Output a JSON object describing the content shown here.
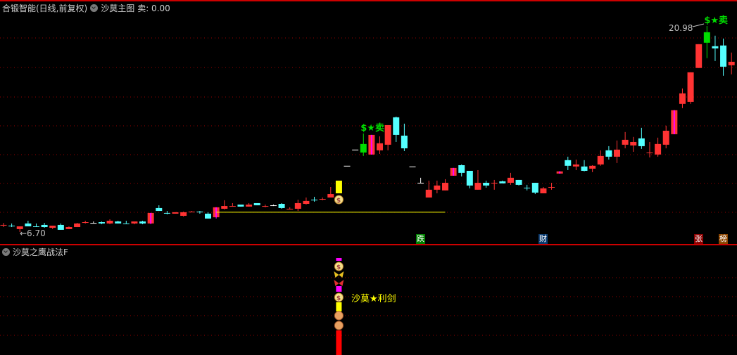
{
  "header": {
    "stock": "合锻智能(日线,前复权)",
    "indicator": "沙莫主图",
    "sell_label": "卖: 0.00"
  },
  "sub_panel": {
    "title": "沙莫之鹰战法F",
    "signal_text": "沙莫★利剑"
  },
  "tags": [
    {
      "text": "跌",
      "color": "#008000"
    },
    {
      "text": "财",
      "color": "#0a3a6e"
    },
    {
      "text": "张",
      "color": "#8b0000"
    },
    {
      "text": "榜",
      "color": "#8b4500"
    }
  ],
  "colors": {
    "up": "#ff3333",
    "down": "#54ffff",
    "doji": "#ffffff",
    "signal_green": "#00dd00",
    "limit_up_wick": "#ff00ff",
    "support_line": "#ffff00",
    "grid": "#990000",
    "divider": "#cc0000"
  },
  "chart_data": {
    "type": "candlestick",
    "price_range": [
      6.7,
      20.98
    ],
    "grid": true,
    "annotations": {
      "low_label": "6.70",
      "high_label": "20.98",
      "sell_signal_text": "$★卖",
      "sell_signal_candles": [
        44,
        86
      ],
      "moneybag_candle": 41,
      "support_level": 8.07,
      "support_from_candle": 26,
      "support_to_candle": 54
    },
    "candles": [
      [
        7.19,
        7.33,
        7.04,
        7.19
      ],
      [
        7.14,
        7.29,
        7.04,
        7.14
      ],
      [
        6.9,
        7.09,
        6.7,
        7.09
      ],
      [
        7.29,
        7.48,
        7.09,
        7.09
      ],
      [
        7.09,
        7.29,
        7.09,
        7.09
      ],
      [
        7.19,
        7.33,
        6.99,
        7.04
      ],
      [
        6.99,
        7.14,
        6.9,
        7.14
      ],
      [
        7.19,
        7.29,
        6.85,
        6.85
      ],
      [
        6.9,
        7.09,
        6.9,
        7.04
      ],
      [
        7.04,
        7.33,
        7.04,
        7.29
      ],
      [
        7.38,
        7.48,
        7.29,
        7.38
      ],
      [
        7.33,
        7.43,
        7.29,
        7.33
      ],
      [
        7.38,
        7.43,
        7.24,
        7.29
      ],
      [
        7.29,
        7.58,
        7.24,
        7.48
      ],
      [
        7.43,
        7.48,
        7.29,
        7.29
      ],
      [
        7.29,
        7.48,
        7.29,
        7.29
      ],
      [
        7.29,
        7.43,
        7.24,
        7.43
      ],
      [
        7.43,
        7.48,
        7.24,
        7.29
      ],
      [
        7.29,
        8.02,
        7.24,
        8.02
      ],
      [
        8.36,
        8.55,
        8.16,
        8.16
      ],
      [
        8.02,
        8.16,
        7.92,
        8.02
      ],
      [
        7.97,
        8.07,
        7.97,
        8.07
      ],
      [
        7.82,
        8.11,
        7.77,
        8.07
      ],
      [
        8.11,
        8.16,
        8.07,
        8.11
      ],
      [
        8.11,
        8.16,
        7.97,
        8.11
      ],
      [
        7.97,
        8.07,
        7.63,
        7.63
      ],
      [
        7.72,
        8.41,
        7.63,
        8.41
      ],
      [
        8.31,
        8.9,
        8.26,
        8.5
      ],
      [
        8.5,
        8.7,
        8.46,
        8.5
      ],
      [
        8.6,
        8.6,
        8.46,
        8.46
      ],
      [
        8.46,
        8.7,
        8.46,
        8.6
      ],
      [
        8.7,
        8.7,
        8.55,
        8.55
      ],
      [
        8.5,
        8.6,
        8.41,
        8.5
      ],
      [
        8.55,
        8.6,
        8.5,
        8.55
      ],
      [
        8.65,
        8.7,
        8.31,
        8.36
      ],
      [
        8.31,
        8.41,
        8.26,
        8.31
      ],
      [
        8.31,
        8.94,
        8.16,
        8.7
      ],
      [
        8.65,
        9.09,
        8.6,
        8.85
      ],
      [
        8.94,
        9.14,
        8.8,
        8.94
      ],
      [
        8.99,
        9.09,
        8.9,
        8.99
      ],
      [
        9.09,
        9.82,
        9.09,
        9.33
      ],
      [
        9.38,
        10.26,
        9.38,
        10.26
      ],
      [
        11.29,
        11.29,
        11.29,
        11.29
      ],
      [
        12.41,
        12.41,
        12.41,
        12.41
      ],
      [
        12.21,
        13.53,
        11.97,
        12.8
      ],
      [
        12.07,
        13.43,
        12.07,
        13.43
      ],
      [
        12.36,
        13.33,
        12.11,
        12.85
      ],
      [
        12.75,
        14.11,
        12.36,
        14.11
      ],
      [
        14.65,
        14.7,
        12.94,
        13.43
      ],
      [
        13.38,
        14.21,
        12.31,
        12.5
      ],
      [
        11.24,
        11.24,
        11.24,
        11.24
      ],
      [
        10.11,
        10.46,
        10.11,
        10.11
      ],
      [
        9.09,
        10.26,
        9.09,
        9.63
      ],
      [
        9.63,
        10.26,
        9.38,
        9.92
      ],
      [
        9.58,
        10.36,
        9.58,
        10.11
      ],
      [
        10.6,
        11.14,
        10.6,
        11.14
      ],
      [
        11.33,
        11.38,
        10.55,
        10.8
      ],
      [
        10.94,
        10.94,
        9.72,
        9.92
      ],
      [
        9.63,
        10.99,
        9.63,
        10.11
      ],
      [
        10.11,
        10.26,
        9.77,
        9.92
      ],
      [
        10.11,
        10.31,
        9.63,
        10.11
      ],
      [
        10.21,
        10.26,
        10.07,
        10.07
      ],
      [
        10.11,
        10.8,
        9.97,
        10.46
      ],
      [
        10.31,
        10.31,
        9.92,
        9.97
      ],
      [
        9.77,
        9.97,
        9.58,
        9.77
      ],
      [
        10.11,
        10.11,
        9.33,
        9.43
      ],
      [
        9.38,
        9.82,
        9.38,
        9.72
      ],
      [
        9.82,
        10.11,
        9.63,
        9.82
      ],
      [
        10.75,
        10.9,
        10.75,
        10.9
      ],
      [
        11.68,
        11.92,
        10.99,
        11.29
      ],
      [
        11.24,
        11.72,
        10.99,
        11.38
      ],
      [
        11.24,
        11.68,
        10.9,
        10.94
      ],
      [
        11.09,
        11.33,
        10.85,
        11.29
      ],
      [
        11.38,
        12.36,
        11.29,
        11.97
      ],
      [
        12.36,
        12.65,
        11.72,
        11.92
      ],
      [
        11.92,
        13.04,
        11.48,
        12.41
      ],
      [
        12.75,
        13.63,
        12.5,
        13.09
      ],
      [
        12.7,
        13.29,
        12.26,
        12.94
      ],
      [
        13.19,
        13.92,
        12.46,
        12.65
      ],
      [
        12.21,
        12.94,
        11.87,
        12.21
      ],
      [
        12.07,
        13.24,
        11.92,
        12.8
      ],
      [
        12.75,
        14.07,
        12.5,
        13.72
      ],
      [
        13.48,
        15.14,
        13.48,
        15.14
      ],
      [
        15.58,
        16.65,
        15.29,
        16.31
      ],
      [
        15.72,
        17.77,
        15.58,
        17.77
      ],
      [
        18.07,
        19.72,
        18.07,
        19.72
      ],
      [
        20.55,
        20.98,
        18.75,
        19.82
      ],
      [
        19.58,
        20.31,
        18.55,
        19.43
      ],
      [
        19.63,
        20.11,
        17.53,
        18.16
      ],
      [
        18.26,
        19.14,
        17.63,
        18.5
      ]
    ],
    "special_colors": {
      "41": "yellow",
      "44": "green",
      "86": "green"
    },
    "limit_up_candles": [
      18,
      26,
      45,
      55,
      68,
      82
    ]
  }
}
